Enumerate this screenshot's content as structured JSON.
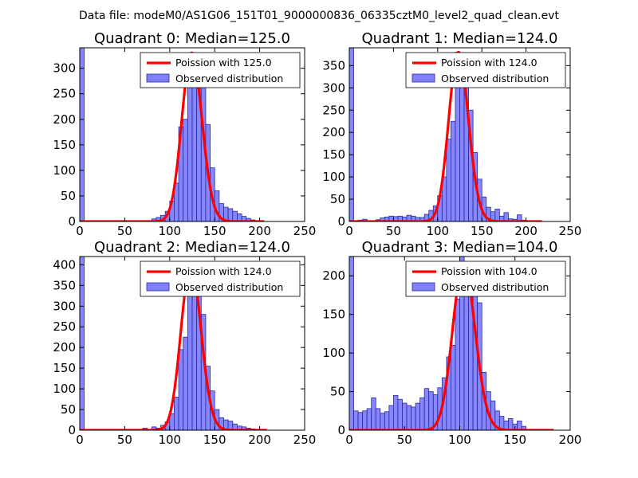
{
  "figure_title": "Data file: modeM0/AS1G06_151T01_9000000836_06335cztM0_level2_quad_clean.evt",
  "colors": {
    "poisson": "#ff0000",
    "bars": "#8080ff",
    "bar_edge": "#2a2a9a",
    "frame": "#000000"
  },
  "chart_data": [
    {
      "type": "bar",
      "title": "Quadrant 0: Median=125.0",
      "xlim": [
        0,
        250
      ],
      "ylim": [
        0,
        340
      ],
      "xticks": [
        0,
        50,
        100,
        150,
        200,
        250
      ],
      "yticks": [
        0,
        50,
        100,
        150,
        200,
        250,
        300
      ],
      "bin_width": 5,
      "legend": {
        "position": "top-right",
        "line_label": "Poission with 125.0",
        "bar_label": "Observed distribution"
      },
      "bins": [
        [
          0,
          340
        ],
        [
          80,
          5
        ],
        [
          85,
          8
        ],
        [
          90,
          12
        ],
        [
          95,
          20
        ],
        [
          100,
          40
        ],
        [
          105,
          75
        ],
        [
          110,
          185
        ],
        [
          115,
          200
        ],
        [
          120,
          330
        ],
        [
          125,
          330
        ],
        [
          130,
          310
        ],
        [
          135,
          270
        ],
        [
          140,
          190
        ],
        [
          145,
          105
        ],
        [
          150,
          60
        ],
        [
          155,
          35
        ],
        [
          160,
          28
        ],
        [
          165,
          25
        ],
        [
          170,
          20
        ],
        [
          175,
          15
        ],
        [
          180,
          10
        ],
        [
          185,
          6
        ],
        [
          190,
          3
        ]
      ],
      "poisson_mean": 125.0,
      "poisson_peak": 330,
      "poisson_range": [
        0,
        205
      ]
    },
    {
      "type": "bar",
      "title": "Quadrant 1: Median=124.0",
      "xlim": [
        0,
        250
      ],
      "ylim": [
        0,
        390
      ],
      "xticks": [
        0,
        50,
        100,
        150,
        200,
        250
      ],
      "yticks": [
        0,
        50,
        100,
        150,
        200,
        250,
        300,
        350
      ],
      "bin_width": 5,
      "legend": {
        "position": "top-right",
        "line_label": "Poission with 124.0",
        "bar_label": "Observed distribution"
      },
      "bins": [
        [
          0,
          390
        ],
        [
          10,
          3
        ],
        [
          15,
          5
        ],
        [
          30,
          4
        ],
        [
          35,
          8
        ],
        [
          40,
          10
        ],
        [
          45,
          12
        ],
        [
          50,
          11
        ],
        [
          55,
          12
        ],
        [
          60,
          10
        ],
        [
          65,
          14
        ],
        [
          70,
          12
        ],
        [
          75,
          9
        ],
        [
          80,
          9
        ],
        [
          85,
          16
        ],
        [
          90,
          25
        ],
        [
          95,
          35
        ],
        [
          100,
          58
        ],
        [
          105,
          100
        ],
        [
          110,
          185
        ],
        [
          115,
          225
        ],
        [
          120,
          380
        ],
        [
          125,
          375
        ],
        [
          130,
          335
        ],
        [
          135,
          250
        ],
        [
          140,
          155
        ],
        [
          145,
          95
        ],
        [
          150,
          55
        ],
        [
          155,
          32
        ],
        [
          160,
          22
        ],
        [
          165,
          28
        ],
        [
          170,
          12
        ],
        [
          175,
          20
        ],
        [
          180,
          6
        ],
        [
          185,
          5
        ],
        [
          190,
          15
        ],
        [
          195,
          3
        ]
      ],
      "poisson_mean": 124.0,
      "poisson_peak": 380,
      "poisson_range": [
        0,
        218
      ]
    },
    {
      "type": "bar",
      "title": "Quadrant 2: Median=124.0",
      "xlim": [
        0,
        250
      ],
      "ylim": [
        0,
        420
      ],
      "xticks": [
        0,
        50,
        100,
        150,
        200,
        250
      ],
      "yticks": [
        0,
        50,
        100,
        150,
        200,
        250,
        300,
        350,
        400
      ],
      "bin_width": 5,
      "legend": {
        "position": "top-right",
        "line_label": "Poission with 124.0",
        "bar_label": "Observed distribution"
      },
      "bins": [
        [
          0,
          420
        ],
        [
          70,
          5
        ],
        [
          80,
          8
        ],
        [
          85,
          5
        ],
        [
          90,
          12
        ],
        [
          95,
          20
        ],
        [
          100,
          40
        ],
        [
          105,
          80
        ],
        [
          110,
          195
        ],
        [
          115,
          225
        ],
        [
          120,
          400
        ],
        [
          125,
          405
        ],
        [
          130,
          340
        ],
        [
          135,
          280
        ],
        [
          140,
          155
        ],
        [
          145,
          95
        ],
        [
          150,
          50
        ],
        [
          155,
          30
        ],
        [
          160,
          25
        ],
        [
          165,
          22
        ],
        [
          170,
          15
        ],
        [
          175,
          10
        ],
        [
          180,
          8
        ],
        [
          185,
          5
        ],
        [
          190,
          3
        ]
      ],
      "poisson_mean": 124.0,
      "poisson_peak": 400,
      "poisson_range": [
        0,
        208
      ]
    },
    {
      "type": "bar",
      "title": "Quadrant 3: Median=104.0",
      "xlim": [
        0,
        200
      ],
      "ylim": [
        0,
        225
      ],
      "xticks": [
        0,
        50,
        100,
        150,
        200
      ],
      "yticks": [
        0,
        50,
        100,
        150,
        200
      ],
      "bin_width": 4,
      "legend": {
        "position": "top-right",
        "line_label": "Poission with 104.0",
        "bar_label": "Observed distribution"
      },
      "bins": [
        [
          0,
          225
        ],
        [
          4,
          25
        ],
        [
          8,
          23
        ],
        [
          12,
          25
        ],
        [
          16,
          28
        ],
        [
          20,
          42
        ],
        [
          24,
          28
        ],
        [
          28,
          22
        ],
        [
          32,
          24
        ],
        [
          36,
          32
        ],
        [
          40,
          45
        ],
        [
          44,
          40
        ],
        [
          48,
          35
        ],
        [
          52,
          32
        ],
        [
          56,
          30
        ],
        [
          60,
          35
        ],
        [
          64,
          42
        ],
        [
          68,
          54
        ],
        [
          72,
          50
        ],
        [
          76,
          46
        ],
        [
          80,
          55
        ],
        [
          84,
          68
        ],
        [
          88,
          95
        ],
        [
          92,
          110
        ],
        [
          96,
          170
        ],
        [
          100,
          225
        ],
        [
          104,
          215
        ],
        [
          108,
          215
        ],
        [
          112,
          205
        ],
        [
          116,
          165
        ],
        [
          120,
          75
        ],
        [
          124,
          50
        ],
        [
          128,
          38
        ],
        [
          132,
          25
        ],
        [
          136,
          18
        ],
        [
          140,
          12
        ],
        [
          144,
          15
        ],
        [
          148,
          8
        ],
        [
          152,
          12
        ],
        [
          156,
          5
        ]
      ],
      "poisson_mean": 104.0,
      "poisson_peak": 215,
      "poisson_range": [
        0,
        185
      ]
    }
  ]
}
